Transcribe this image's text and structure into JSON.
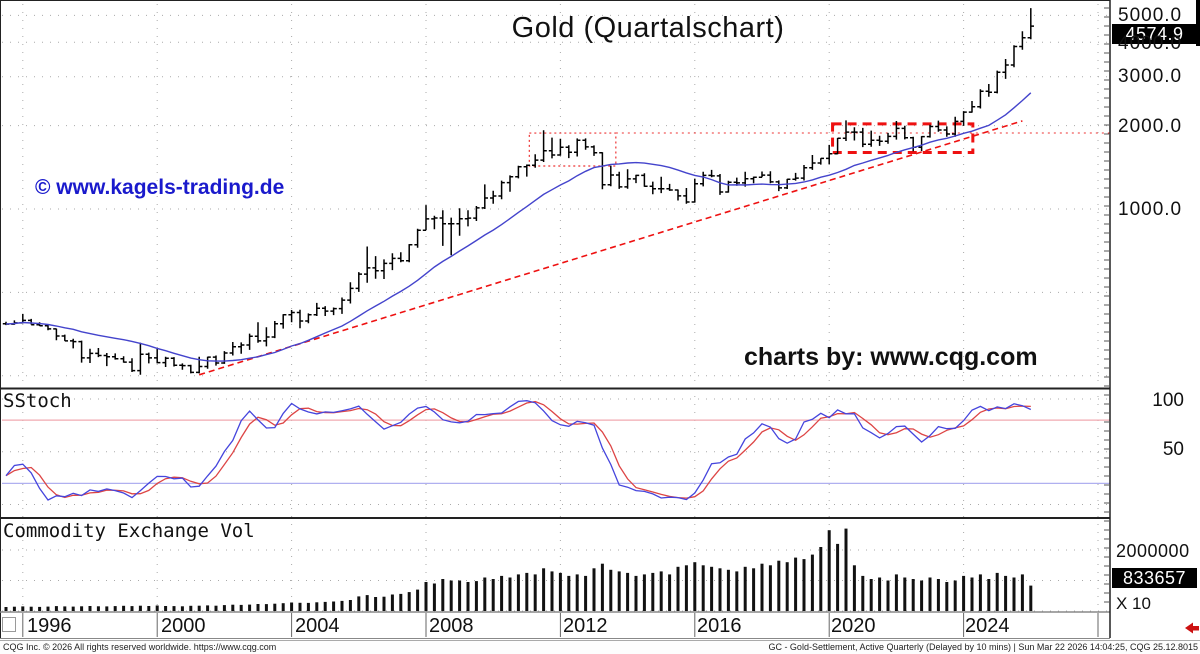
{
  "header": {
    "title": "Gold (Quartalschart)"
  },
  "watermarks": {
    "kagels": "© www.kagels-trading.de",
    "cqg": "charts by: www.cqg.com"
  },
  "panels": {
    "stoch_label": "SStoch",
    "volume_label": "Commodity Exchange Vol",
    "volume_multiplier": "X 10"
  },
  "axes": {
    "price_labels": [
      "5000.0",
      "4000.0",
      "3000.0",
      "2000.0",
      "1000.0"
    ],
    "stoch_labels": [
      "100",
      "50"
    ],
    "volume_scale_label": "2000000",
    "year_labels": [
      "1996",
      "2000",
      "2004",
      "2008",
      "2012",
      "2016",
      "2020",
      "2024"
    ],
    "last_price": "4574.9",
    "last_volume": "833657"
  },
  "status_bar": {
    "left": "CQG Inc. © 2026 All rights reserved worldwide. https://www.cqg.com",
    "right": "GC - Gold-Settlement, Active Quarterly (Delayed by 10 mins) | Sun Mar 22 2026 14:04:25, CQG 25.12.8015"
  },
  "colors": {
    "bars": "#000000",
    "ma_line": "#4444cc",
    "trendline": "#ee1111",
    "box_dotted": "#ee3333",
    "box_dashed": "#ee1111",
    "stoch_k": "#4545dd",
    "stoch_d": "#dd4545",
    "stoch_upper_ref": "#f0aab0",
    "stoch_lower_ref": "#b0b0f0",
    "grid": "#aaaaaa",
    "volume_bars": "#111111",
    "scroll_arrow": "#cc1111"
  },
  "chart_data": {
    "type": "bar",
    "title": "Gold (Quartalschart)",
    "symbol": "GC Gold-Settlement, Active Quarterly",
    "freq": "quarterly",
    "start_quarter": "1995-Q3",
    "scale": "log",
    "price_gridlines": [
      5000,
      4000,
      3000,
      2000,
      1000,
      500,
      250
    ],
    "year_gridlines": [
      1996,
      2000,
      2004,
      2008,
      2012,
      2016,
      2020,
      2024,
      2028
    ],
    "last_price": 4574.9,
    "last_volume": 833657,
    "volume_scale_max": 2000000,
    "ohlc": [
      [
        385,
        392,
        381,
        384
      ],
      [
        384,
        396,
        382,
        388
      ],
      [
        388,
        418,
        386,
        396
      ],
      [
        396,
        401,
        383,
        382
      ],
      [
        382,
        390,
        378,
        379
      ],
      [
        379,
        382,
        365,
        369
      ],
      [
        369,
        370,
        336,
        348
      ],
      [
        348,
        352,
        334,
        334
      ],
      [
        334,
        340,
        314,
        332
      ],
      [
        332,
        335,
        279,
        290
      ],
      [
        290,
        313,
        278,
        301
      ],
      [
        301,
        315,
        292,
        296
      ],
      [
        296,
        302,
        271,
        293
      ],
      [
        293,
        301,
        286,
        288
      ],
      [
        288,
        294,
        279,
        280
      ],
      [
        280,
        289,
        258,
        261
      ],
      [
        261,
        329,
        252,
        299
      ],
      [
        299,
        303,
        277,
        290
      ],
      [
        290,
        316,
        277,
        279
      ],
      [
        279,
        293,
        269,
        289
      ],
      [
        289,
        292,
        270,
        273
      ],
      [
        273,
        277,
        263,
        272
      ],
      [
        272,
        274,
        255,
        257
      ],
      [
        257,
        293,
        255,
        270
      ],
      [
        270,
        293,
        265,
        292
      ],
      [
        292,
        296,
        272,
        278
      ],
      [
        278,
        307,
        276,
        302
      ],
      [
        302,
        331,
        296,
        318
      ],
      [
        318,
        330,
        300,
        323
      ],
      [
        323,
        355,
        310,
        347
      ],
      [
        347,
        390,
        329,
        334
      ],
      [
        334,
        374,
        319,
        345
      ],
      [
        345,
        394,
        342,
        385
      ],
      [
        385,
        417,
        370,
        415
      ],
      [
        415,
        432,
        390,
        423
      ],
      [
        423,
        433,
        371,
        394
      ],
      [
        394,
        420,
        387,
        415
      ],
      [
        415,
        458,
        411,
        438
      ],
      [
        438,
        446,
        411,
        428
      ],
      [
        428,
        441,
        414,
        437
      ],
      [
        437,
        479,
        418,
        469
      ],
      [
        469,
        544,
        456,
        517
      ],
      [
        517,
        592,
        502,
        582
      ],
      [
        582,
        732,
        542,
        613
      ],
      [
        613,
        676,
        560,
        599
      ],
      [
        599,
        658,
        559,
        636
      ],
      [
        636,
        692,
        602,
        663
      ],
      [
        663,
        698,
        642,
        650
      ],
      [
        650,
        747,
        642,
        743
      ],
      [
        743,
        848,
        725,
        838
      ],
      [
        838,
        1033,
        838,
        921
      ],
      [
        921,
        946,
        845,
        928
      ],
      [
        928,
        989,
        736,
        884
      ],
      [
        884,
        931,
        681,
        884
      ],
      [
        884,
        1007,
        801,
        922
      ],
      [
        922,
        990,
        865,
        927
      ],
      [
        927,
        1025,
        905,
        1009
      ],
      [
        1009,
        1227,
        1000,
        1096
      ],
      [
        1096,
        1163,
        1044,
        1114
      ],
      [
        1114,
        1266,
        1084,
        1245
      ],
      [
        1245,
        1322,
        1155,
        1307
      ],
      [
        1307,
        1432,
        1290,
        1421
      ],
      [
        1421,
        1448,
        1309,
        1439
      ],
      [
        1439,
        1577,
        1410,
        1502
      ],
      [
        1502,
        1924,
        1478,
        1622
      ],
      [
        1622,
        1810,
        1523,
        1566
      ],
      [
        1566,
        1792,
        1556,
        1671
      ],
      [
        1671,
        1700,
        1527,
        1604
      ],
      [
        1604,
        1798,
        1547,
        1771
      ],
      [
        1771,
        1799,
        1636,
        1676
      ],
      [
        1676,
        1697,
        1555,
        1595
      ],
      [
        1595,
        1604,
        1179,
        1224
      ],
      [
        1224,
        1434,
        1208,
        1327
      ],
      [
        1327,
        1362,
        1182,
        1202
      ],
      [
        1202,
        1392,
        1184,
        1284
      ],
      [
        1284,
        1330,
        1240,
        1322
      ],
      [
        1322,
        1346,
        1204,
        1209
      ],
      [
        1209,
        1256,
        1130,
        1184
      ],
      [
        1184,
        1307,
        1141,
        1183
      ],
      [
        1183,
        1232,
        1162,
        1171
      ],
      [
        1171,
        1176,
        1073,
        1115
      ],
      [
        1115,
        1191,
        1045,
        1060
      ],
      [
        1060,
        1287,
        1055,
        1233
      ],
      [
        1233,
        1362,
        1207,
        1322
      ],
      [
        1322,
        1384,
        1302,
        1317
      ],
      [
        1317,
        1338,
        1124,
        1152
      ],
      [
        1152,
        1264,
        1146,
        1249
      ],
      [
        1249,
        1298,
        1214,
        1242
      ],
      [
        1242,
        1362,
        1205,
        1285
      ],
      [
        1285,
        1309,
        1238,
        1303
      ],
      [
        1303,
        1366,
        1302,
        1325
      ],
      [
        1325,
        1369,
        1238,
        1253
      ],
      [
        1253,
        1268,
        1160,
        1192
      ],
      [
        1192,
        1284,
        1181,
        1281
      ],
      [
        1281,
        1350,
        1266,
        1293
      ],
      [
        1293,
        1442,
        1267,
        1410
      ],
      [
        1410,
        1566,
        1384,
        1466
      ],
      [
        1466,
        1525,
        1446,
        1523
      ],
      [
        1523,
        1704,
        1451,
        1583
      ],
      [
        1583,
        1804,
        1576,
        1801
      ],
      [
        1801,
        2089,
        1760,
        1895
      ],
      [
        1895,
        1973,
        1767,
        1895
      ],
      [
        1895,
        1962,
        1673,
        1713
      ],
      [
        1713,
        1919,
        1677,
        1770
      ],
      [
        1770,
        1837,
        1690,
        1757
      ],
      [
        1757,
        1882,
        1721,
        1829
      ],
      [
        1829,
        2078,
        1780,
        1954
      ],
      [
        1954,
        1998,
        1784,
        1807
      ],
      [
        1807,
        1824,
        1615,
        1672
      ],
      [
        1672,
        1833,
        1618,
        1826
      ],
      [
        1826,
        2014,
        1810,
        1986
      ],
      [
        1986,
        2085,
        1900,
        1929
      ],
      [
        1929,
        1987,
        1823,
        1866
      ],
      [
        1866,
        2152,
        1824,
        2072
      ],
      [
        2072,
        2257,
        1996,
        2238
      ],
      [
        2238,
        2454,
        2228,
        2340
      ],
      [
        2340,
        2708,
        2305,
        2660
      ],
      [
        2660,
        2826,
        2542,
        2641
      ],
      [
        2641,
        3160,
        2614,
        3115
      ],
      [
        3115,
        3480,
        2950,
        3310
      ],
      [
        3310,
        3900,
        3250,
        3860
      ],
      [
        3860,
        4380,
        3760,
        4150
      ],
      [
        4150,
        5310,
        4100,
        4574.9
      ]
    ],
    "volume": [
      130000,
      140000,
      150000,
      140000,
      135000,
      145000,
      160000,
      150000,
      145000,
      155000,
      165000,
      155000,
      150000,
      160000,
      170000,
      160000,
      175000,
      165000,
      180000,
      165000,
      160000,
      155000,
      170000,
      175000,
      185000,
      175000,
      195000,
      205000,
      200000,
      210000,
      230000,
      225000,
      240000,
      255000,
      280000,
      270000,
      265000,
      285000,
      300000,
      310000,
      330000,
      360000,
      480000,
      520000,
      460000,
      470000,
      540000,
      560000,
      620000,
      700000,
      950000,
      900000,
      1050000,
      1000000,
      1000000,
      950000,
      980000,
      1100000,
      1050000,
      1150000,
      1100000,
      1200000,
      1250000,
      1200000,
      1400000,
      1300000,
      1250000,
      1150000,
      1200000,
      1150000,
      1400000,
      1550000,
      1350000,
      1300000,
      1250000,
      1150000,
      1200000,
      1250000,
      1300000,
      1200000,
      1450000,
      1500000,
      1600000,
      1500000,
      1450000,
      1400000,
      1350000,
      1300000,
      1450000,
      1400000,
      1550000,
      1500000,
      1650000,
      1600000,
      1750000,
      1700000,
      1850000,
      2100000,
      2650000,
      2200000,
      2700000,
      1500000,
      1150000,
      1050000,
      1100000,
      1000000,
      1200000,
      1100000,
      1050000,
      1000000,
      1100000,
      1050000,
      950000,
      1000000,
      1150000,
      1100000,
      1200000,
      1050000,
      1250000,
      1150000,
      1100000,
      1200000,
      833657
    ],
    "indicators": {
      "ma": {
        "type": "sma_close",
        "period": 16
      },
      "sstoch": {
        "k_period": 14,
        "k_smooth": 3,
        "d_smooth": 3,
        "upper_ref": 80,
        "lower_ref": 20,
        "scale": [
          0,
          100
        ]
      }
    },
    "annotations": {
      "trendline": {
        "from": {
          "bar": 23,
          "price": 252
        },
        "to": {
          "bar": 121,
          "price": 2080
        }
      },
      "dotted_box": {
        "bar_from": 62.3,
        "bar_to": 72.6,
        "price_top": 1880,
        "price_bottom": 1430
      },
      "dashed_box": {
        "bar_from": 98.4,
        "bar_to": 115.1,
        "price_top": 2030,
        "price_bottom": 1600
      },
      "resistance_extension": {
        "price": 1880,
        "bar_from": 72.6
      }
    }
  }
}
